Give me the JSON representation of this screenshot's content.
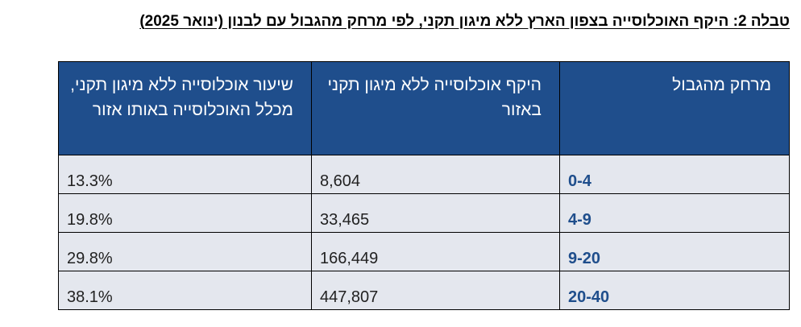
{
  "caption": "טבלה 2: היקף האוכלוסייה בצפון הארץ ללא מיגון תקני, לפי מרחק מהגבול עם לבנון (ינואר 2025)",
  "table": {
    "headers": [
      "מרחק מהגבול",
      "היקף אוכלוסייה ללא מיגון תקני באזור",
      "שיעור אוכלוסייה ללא מיגון תקני, מכלל האוכלוסייה באותו אזור"
    ],
    "rows": [
      {
        "range": "0-4",
        "population": "8,604",
        "rate": "13.3%"
      },
      {
        "range": "4-9",
        "population": "33,465",
        "rate": "19.8%"
      },
      {
        "range": "9-20",
        "population": "166,449",
        "rate": "29.8%"
      },
      {
        "range": "20-40",
        "population": "447,807",
        "rate": "38.1%"
      }
    ]
  }
}
